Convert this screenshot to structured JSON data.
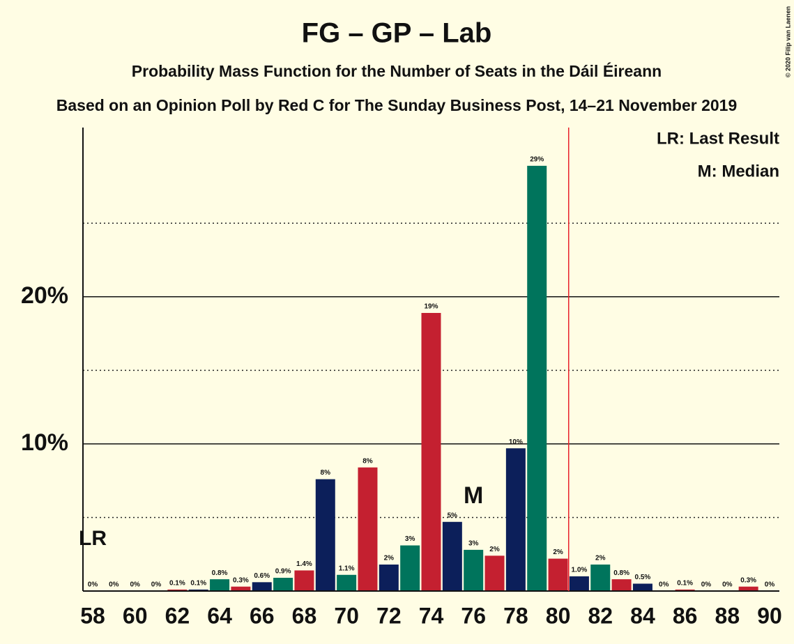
{
  "chart_data": {
    "type": "bar",
    "title": "FG – GP – Lab",
    "subtitle": "Probability Mass Function for the Number of Seats in the Dáil Éireann",
    "source_note": "Based on an Opinion Poll by Red C for The Sunday Business Post, 14–21 November 2019",
    "copyright": "© 2020 Filip van Laenen",
    "legend": [
      "LR: Last Result",
      "M: Median"
    ],
    "categories": [
      58,
      null,
      60,
      null,
      62,
      null,
      64,
      null,
      66,
      null,
      68,
      null,
      70,
      null,
      72,
      null,
      74,
      null,
      76,
      null,
      78,
      null,
      80,
      null,
      82,
      null,
      84,
      null,
      86,
      null,
      88,
      null,
      90
    ],
    "values": [
      0,
      0,
      0,
      0,
      0.1,
      0.1,
      0.8,
      0.3,
      0.6,
      0.9,
      1.4,
      7.6,
      1.1,
      8.4,
      1.8,
      3.1,
      18.9,
      4.7,
      2.8,
      2.4,
      9.7,
      28.9,
      2.2,
      1.0,
      1.8,
      0.8,
      0.5,
      0,
      0.1,
      0,
      0,
      0.3,
      0
    ],
    "value_labels": [
      "0%",
      "0%",
      "0%",
      "0%",
      "0.1%",
      "0.1%",
      "0.8%",
      "0.3%",
      "0.6%",
      "0.9%",
      "1.4%",
      "8%",
      "1.1%",
      "8%",
      "2%",
      "3%",
      "19%",
      "5%",
      "3%",
      "2%",
      "10%",
      "29%",
      "2%",
      "1.0%",
      "2%",
      "0.8%",
      "0.5%",
      "0%",
      "0.1%",
      "0%",
      "0%",
      "0.3%",
      "0%"
    ],
    "colors": [
      "#00745c",
      "#c42030",
      "#0c1f5a",
      "#00745c",
      "#c42030",
      "#0c1f5a",
      "#00745c",
      "#c42030",
      "#0c1f5a",
      "#00745c",
      "#c42030",
      "#0c1f5a",
      "#00745c",
      "#c42030",
      "#0c1f5a",
      "#00745c",
      "#c42030",
      "#0c1f5a",
      "#00745c",
      "#c42030",
      "#0c1f5a",
      "#00745c",
      "#c42030",
      "#0c1f5a",
      "#00745c",
      "#c42030",
      "#0c1f5a",
      "#00745c",
      "#c42030",
      "#0c1f5a",
      "#00745c",
      "#c42030",
      "#0c1f5a"
    ],
    "ylim": [
      0,
      31.5
    ],
    "yticks": [
      {
        "value": 10,
        "label": "10%"
      },
      {
        "value": 20,
        "label": "20%"
      }
    ],
    "yticks_minor": [
      5,
      15,
      25
    ],
    "last_result": 58,
    "last_result_label": "LR",
    "median": 76,
    "median_label": "M",
    "majority_line": 80.5
  }
}
